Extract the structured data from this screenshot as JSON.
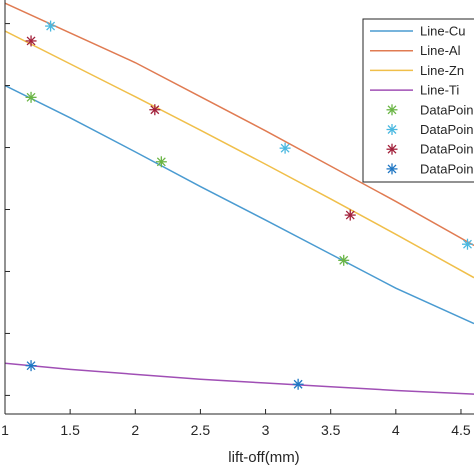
{
  "chart_data": {
    "type": "line",
    "title": "",
    "xlabel": "lift-off(mm)",
    "ylabel": "",
    "xlim": [
      1,
      4.6
    ],
    "ylim": [
      0,
      6.6
    ],
    "x_ticks": [
      1,
      1.5,
      2,
      2.5,
      3,
      3.5,
      4,
      4.5
    ],
    "x_tick_labels": [
      "1",
      "1.5",
      "2",
      "2.5",
      "3",
      "3.5",
      "4",
      "4.5"
    ],
    "y_ticks": [
      0.3,
      1.3,
      2.3,
      3.3,
      4.3,
      5.3,
      6.3
    ],
    "grid": false,
    "legend_position": "top-right",
    "series": [
      {
        "name": "Line-Cu",
        "kind": "line",
        "color": "#4a9bd1",
        "x": [
          1,
          1.5,
          2,
          2.5,
          3,
          3.5,
          4,
          4.6
        ],
        "y": [
          5.3,
          4.78,
          4.23,
          3.67,
          3.13,
          2.58,
          2.03,
          1.46
        ]
      },
      {
        "name": "Line-Al",
        "kind": "line",
        "color": "#e07b52",
        "x": [
          1,
          1.5,
          2,
          2.5,
          3,
          3.5,
          4,
          4.6
        ],
        "y": [
          6.63,
          6.15,
          5.67,
          5.12,
          4.57,
          4.0,
          3.43,
          2.72
        ]
      },
      {
        "name": "Line-Zn",
        "kind": "line",
        "color": "#f0bf4a",
        "x": [
          1,
          1.5,
          2,
          2.5,
          3,
          3.5,
          4,
          4.6
        ],
        "y": [
          6.18,
          5.65,
          5.12,
          4.58,
          4.03,
          3.47,
          2.9,
          2.2
        ]
      },
      {
        "name": "Line-Ti",
        "kind": "line",
        "color": "#a04fb5",
        "x": [
          1,
          1.5,
          2,
          2.5,
          3,
          3.5,
          4,
          4.6
        ],
        "y": [
          0.82,
          0.72,
          0.64,
          0.56,
          0.5,
          0.44,
          0.38,
          0.32
        ]
      },
      {
        "name": "DataPoints-Cu",
        "kind": "scatter",
        "color": "#6ab545",
        "x": [
          1.2,
          2.2,
          3.6
        ],
        "y": [
          5.11,
          4.07,
          2.48
        ]
      },
      {
        "name": "DataPoints-Al",
        "kind": "scatter",
        "color": "#4ab8e0",
        "x": [
          1.35,
          3.15,
          4.55
        ],
        "y": [
          6.26,
          4.29,
          2.74
        ]
      },
      {
        "name": "DataPoints-Zn",
        "kind": "scatter",
        "color": "#a2203a",
        "x": [
          1.2,
          2.15,
          3.65
        ],
        "y": [
          6.02,
          4.91,
          3.21
        ]
      },
      {
        "name": "DataPoints-Ti",
        "kind": "scatter",
        "color": "#1f77c4",
        "x": [
          1.2,
          3.25
        ],
        "y": [
          0.78,
          0.48
        ]
      }
    ],
    "legend_labels": [
      "Line-Cu",
      "Line-Al",
      "Line-Zn",
      "Line-Ti",
      "DataPoin",
      "DataPoin",
      "DataPoin",
      "DataPoin"
    ]
  }
}
